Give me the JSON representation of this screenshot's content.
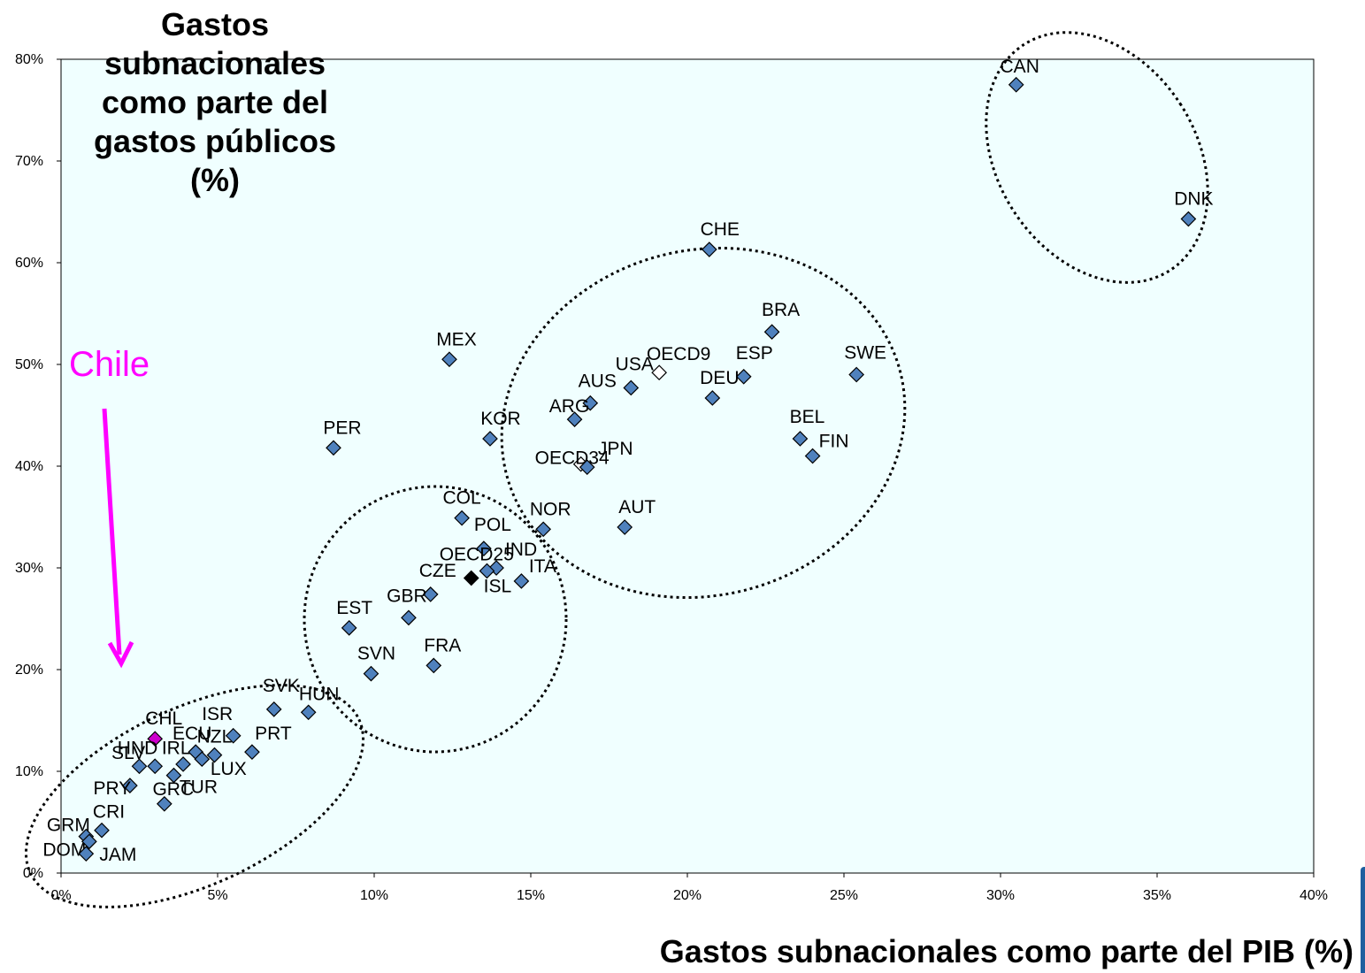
{
  "chart_data": {
    "type": "scatter",
    "ylabel_lines": [
      "Gastos",
      "subnacionales",
      "como parte del",
      "gastos públicos",
      "(%)"
    ],
    "xlabel": "Gastos subnacionales como parte del PIB (%)",
    "xlim": [
      0,
      40
    ],
    "ylim": [
      0,
      80
    ],
    "x_ticks": [
      "0%",
      "5%",
      "10%",
      "15%",
      "20%",
      "25%",
      "30%",
      "35%",
      "40%"
    ],
    "y_ticks": [
      "0%",
      "10%",
      "20%",
      "30%",
      "40%",
      "50%",
      "60%",
      "70%",
      "80%"
    ],
    "grid": false,
    "plot_background": "#f0ffff",
    "marker_color": "#4f81bd",
    "highlight_color": "#cc00cc",
    "points": [
      {
        "label": "CAN",
        "x": 30.5,
        "y": 77.5,
        "style": "normal"
      },
      {
        "label": "DNK",
        "x": 36.0,
        "y": 64.3,
        "style": "normal"
      },
      {
        "label": "CHE",
        "x": 20.7,
        "y": 61.3,
        "style": "normal"
      },
      {
        "label": "BRA",
        "x": 22.7,
        "y": 53.2,
        "style": "normal"
      },
      {
        "label": "SWE",
        "x": 25.4,
        "y": 49.0,
        "style": "normal"
      },
      {
        "label": "MEX",
        "x": 12.4,
        "y": 50.5,
        "style": "normal"
      },
      {
        "label": "OECD9",
        "x": 19.1,
        "y": 49.2,
        "style": "open"
      },
      {
        "label": "USA",
        "x": 18.2,
        "y": 47.7,
        "style": "normal"
      },
      {
        "label": "ESP",
        "x": 21.8,
        "y": 48.8,
        "style": "normal"
      },
      {
        "label": "DEU",
        "x": 20.8,
        "y": 46.7,
        "style": "normal"
      },
      {
        "label": "AUS",
        "x": 16.9,
        "y": 46.2,
        "style": "normal"
      },
      {
        "label": "ARG",
        "x": 16.4,
        "y": 44.6,
        "style": "normal"
      },
      {
        "label": "KOR",
        "x": 13.7,
        "y": 42.7,
        "style": "normal"
      },
      {
        "label": "BEL",
        "x": 23.6,
        "y": 42.7,
        "style": "normal"
      },
      {
        "label": "PER",
        "x": 8.7,
        "y": 41.8,
        "style": "normal"
      },
      {
        "label": "FIN",
        "x": 24.0,
        "y": 41.0,
        "style": "normal"
      },
      {
        "label": "OECD34",
        "x": 16.6,
        "y": 40.2,
        "style": "open"
      },
      {
        "label": "JPN",
        "x": 16.8,
        "y": 39.9,
        "style": "normal"
      },
      {
        "label": "COL",
        "x": 12.8,
        "y": 34.9,
        "style": "normal"
      },
      {
        "label": "NOR",
        "x": 15.4,
        "y": 33.8,
        "style": "normal"
      },
      {
        "label": "AUT",
        "x": 18.0,
        "y": 34.0,
        "style": "normal"
      },
      {
        "label": "POL",
        "x": 13.5,
        "y": 31.9,
        "style": "normal"
      },
      {
        "label": "IND",
        "x": 13.9,
        "y": 30.0,
        "style": "normal"
      },
      {
        "label": "OECD25",
        "x": 13.1,
        "y": 29.0,
        "style": "filled-black"
      },
      {
        "label": "ISL",
        "x": 13.6,
        "y": 29.7,
        "style": "normal"
      },
      {
        "label": "ITA",
        "x": 14.7,
        "y": 28.7,
        "style": "normal"
      },
      {
        "label": "CZE",
        "x": 11.8,
        "y": 27.4,
        "style": "normal"
      },
      {
        "label": "GBR",
        "x": 11.1,
        "y": 25.1,
        "style": "normal"
      },
      {
        "label": "EST",
        "x": 9.2,
        "y": 24.1,
        "style": "normal"
      },
      {
        "label": "FRA",
        "x": 11.9,
        "y": 20.4,
        "style": "normal"
      },
      {
        "label": "SVN",
        "x": 9.9,
        "y": 19.6,
        "style": "normal"
      },
      {
        "label": "SVK",
        "x": 6.8,
        "y": 16.1,
        "style": "normal"
      },
      {
        "label": "HUN",
        "x": 7.9,
        "y": 15.8,
        "style": "normal"
      },
      {
        "label": "ISR",
        "x": 5.5,
        "y": 13.5,
        "style": "normal"
      },
      {
        "label": "CHL",
        "x": 3.0,
        "y": 13.2,
        "style": "highlight"
      },
      {
        "label": "NZL",
        "x": 4.9,
        "y": 11.6,
        "style": "normal"
      },
      {
        "label": "ECU",
        "x": 4.3,
        "y": 11.9,
        "style": "normal"
      },
      {
        "label": "PRT",
        "x": 6.1,
        "y": 11.9,
        "style": "normal"
      },
      {
        "label": "HND",
        "x": 2.5,
        "y": 10.5,
        "style": "normal"
      },
      {
        "label": "IRL",
        "x": 3.0,
        "y": 10.5,
        "style": "normal"
      },
      {
        "label": "LUX",
        "x": 4.5,
        "y": 11.2,
        "style": "normal"
      },
      {
        "label": "SLV",
        "x": 3.9,
        "y": 10.7,
        "style": "normal"
      },
      {
        "label": "TUR",
        "x": 3.6,
        "y": 9.6,
        "style": "normal"
      },
      {
        "label": "PRY",
        "x": 2.2,
        "y": 8.6,
        "style": "normal"
      },
      {
        "label": "GRC",
        "x": 3.3,
        "y": 6.8,
        "style": "normal"
      },
      {
        "label": "CRI",
        "x": 1.3,
        "y": 4.2,
        "style": "normal"
      },
      {
        "label": "GRM",
        "x": 0.8,
        "y": 3.6,
        "style": "normal"
      },
      {
        "label": "DOM",
        "x": 0.9,
        "y": 3.1,
        "style": "normal"
      },
      {
        "label": "JAM",
        "x": 0.8,
        "y": 1.9,
        "style": "normal"
      }
    ]
  },
  "annotation": {
    "text": "Chile",
    "color": "#ff00ff"
  }
}
